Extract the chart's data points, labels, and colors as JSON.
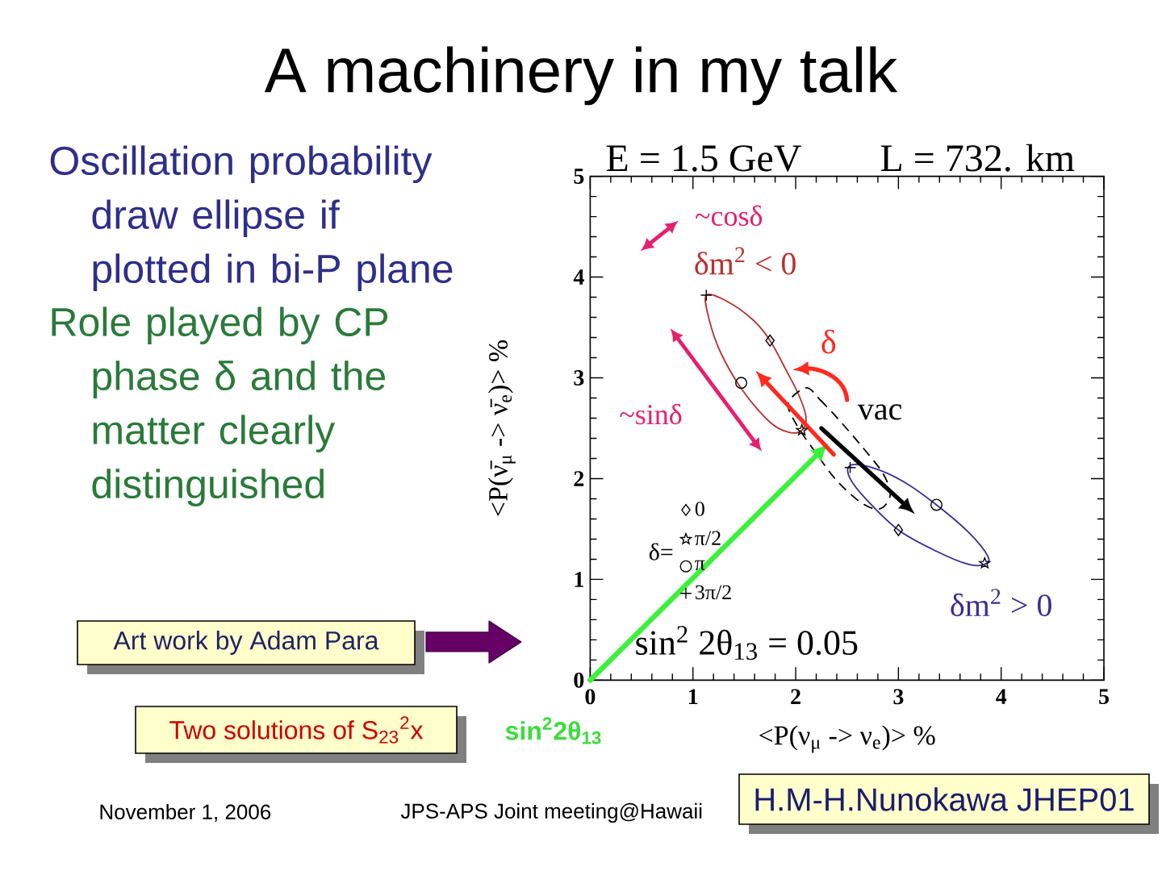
{
  "chart_data": {
    "type": "scatter",
    "title": "A machinery in my talk",
    "xlabel": "<P(ν$_{μ}$ -> ν$_{e}$)> %",
    "ylabel": "<P(ν̄$_{μ}$ -> ν̄$_{e}$)> %",
    "legend_title": "δ=",
    "xlim": [
      0,
      5
    ],
    "ylim": [
      0,
      5
    ],
    "xticks": [
      0,
      1,
      2,
      3,
      4,
      5
    ],
    "yticks": [
      0,
      1,
      2,
      3,
      4,
      5
    ],
    "legend": "left",
    "annotations": [
      "E = 1.5 GeV",
      "L = 732. km",
      "~cosδ",
      "~sinδ",
      "δ",
      "sin$^{2}$ 2θ$_{13}$ = 0.05",
      "**sin$^{2}$2θ$_{13}$**",
      "Oscillation probability draw ellipse if plotted in bi-P plane",
      "Role played by CP phase δ and the matter clearly distinguished",
      "Art work by Adam Para",
      "Two solutions of S$_{23}$$^{2}$x",
      "November 1, 2006",
      "JPS-APS Joint meeting@Hawaii",
      "H.M-H.Nunokawa JHEP01",
      "δm$^{2}$ < 0",
      "δm$^{2}$ > 0",
      "vac"
    ],
    "series": [
      {
        "name": "0",
        "color": "#000000",
        "marker": "diamond",
        "x": [
          1.75,
          3.0
        ],
        "values": [
          3.37,
          1.49
        ]
      },
      {
        "name": "π/2",
        "color": "#000000",
        "marker": "star",
        "x": [
          2.06,
          3.84
        ],
        "values": [
          2.48,
          1.16
        ]
      },
      {
        "name": "π",
        "color": "#000000",
        "marker": "circle",
        "x": [
          1.47,
          3.37
        ],
        "values": [
          2.95,
          1.74
        ]
      },
      {
        "name": "3π/2",
        "color": "#000000",
        "marker": "cross",
        "x": [
          1.13,
          2.53
        ],
        "values": [
          3.82,
          2.11
        ]
      }
    ]
  }
}
